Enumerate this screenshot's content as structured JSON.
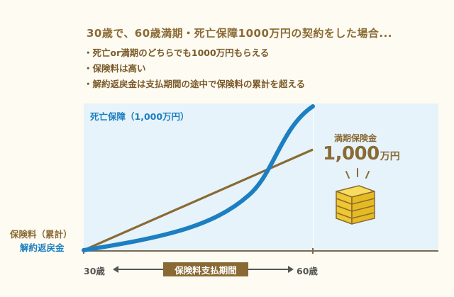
{
  "title": "30歳で、60歳満期・死亡保障1000万円の契約をした場合...",
  "bullets": [
    "死亡or満期のどちらでも1000万円もらえる",
    "保険料は高い",
    "解約返戻金は支払期間の途中で保険料の累計を超える"
  ],
  "chart": {
    "death_benefit_label": "死亡保障（1,000万円）",
    "premium_label": "保険料（累計）",
    "surrender_label": "解約返戻金",
    "age_start": "30歳",
    "age_end": "60歳",
    "period_label": "保険料支払期間",
    "maturity_label": "満期保険金",
    "maturity_amount": "1,000",
    "maturity_unit": "万円",
    "colors": {
      "premium_line": "#8a6a34",
      "surrender_line": "#1d7fc1",
      "panel_bg": "#e6f3fa",
      "coins": "#f2cf3a"
    }
  }
}
